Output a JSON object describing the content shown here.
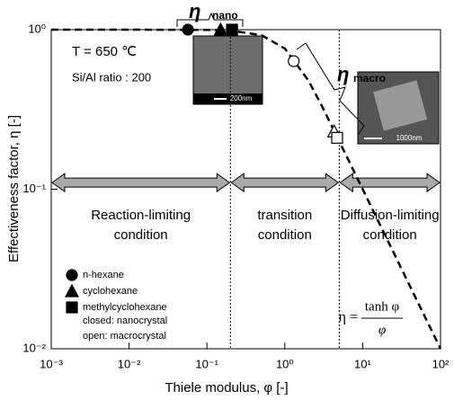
{
  "chart_data": {
    "type": "line",
    "xlabel": "Thiele modulus, φ [-]",
    "ylabel": "Effectiveness factor, η [-]",
    "xscale": "log",
    "yscale": "log",
    "xlim": [
      0.001,
      100
    ],
    "ylim": [
      0.01,
      1
    ],
    "xticks": [
      {
        "value": 0.001,
        "label": "10⁻³"
      },
      {
        "value": 0.01,
        "label": "10⁻²"
      },
      {
        "value": 0.1,
        "label": "10⁻¹"
      },
      {
        "value": 1,
        "label": "10⁰"
      },
      {
        "value": 10,
        "label": "10¹"
      },
      {
        "value": 100,
        "label": "10²"
      }
    ],
    "yticks": [
      {
        "value": 0.01,
        "label": "10⁻²"
      },
      {
        "value": 0.1,
        "label": "10⁻¹"
      },
      {
        "value": 1,
        "label": "10⁰"
      }
    ],
    "curve": {
      "x": [
        0.001,
        0.01,
        0.1,
        0.2,
        0.5,
        1,
        2,
        3,
        5,
        10,
        20,
        50,
        100
      ],
      "values": [
        1,
        1,
        0.9967,
        0.987,
        0.924,
        0.762,
        0.482,
        0.332,
        0.2,
        0.1,
        0.05,
        0.02,
        0.01
      ],
      "style": "dashed",
      "color": "#000000"
    },
    "series": [
      {
        "name": "n-hexane",
        "marker": "circle",
        "x": [
          0.057,
          1.3
        ],
        "values": [
          1,
          0.635
        ],
        "filled": [
          true,
          false
        ]
      },
      {
        "name": "cyclohexane",
        "marker": "triangle",
        "x": [
          0.15,
          4.3
        ],
        "values": [
          1,
          0.23
        ],
        "filled": [
          true,
          false
        ]
      },
      {
        "name": "methylcyclohexane",
        "marker": "square",
        "x": [
          0.21,
          4.7
        ],
        "values": [
          1,
          0.21
        ],
        "filled": [
          true,
          false
        ]
      }
    ],
    "boundaries": [
      0.2,
      5
    ],
    "arrow_y": 0.11,
    "regions": [
      {
        "lines": [
          "Reaction-limiting",
          "condition"
        ],
        "x": [
          0.001,
          0.2
        ]
      },
      {
        "lines": [
          "transition",
          "condition"
        ],
        "x": [
          0.2,
          5
        ]
      },
      {
        "lines": [
          "Diffusion-limiting",
          "condition"
        ],
        "x": [
          5,
          100
        ]
      }
    ],
    "conditions": [
      "T = 650 ℃",
      "Si/Al ratio : 200"
    ],
    "legend_notes": [
      "closed: nanocrystal",
      "open:  macrocrystal"
    ],
    "eta_nano": {
      "symbol": "η",
      "sub": "nano"
    },
    "eta_macro": {
      "symbol": "η",
      "sub": "macro"
    },
    "formula": {
      "lhs": "η =",
      "numerator": "tanh φ",
      "denominator": "φ"
    },
    "images": [
      {
        "scale": "200nm"
      },
      {
        "scale": "1000nm"
      }
    ]
  }
}
